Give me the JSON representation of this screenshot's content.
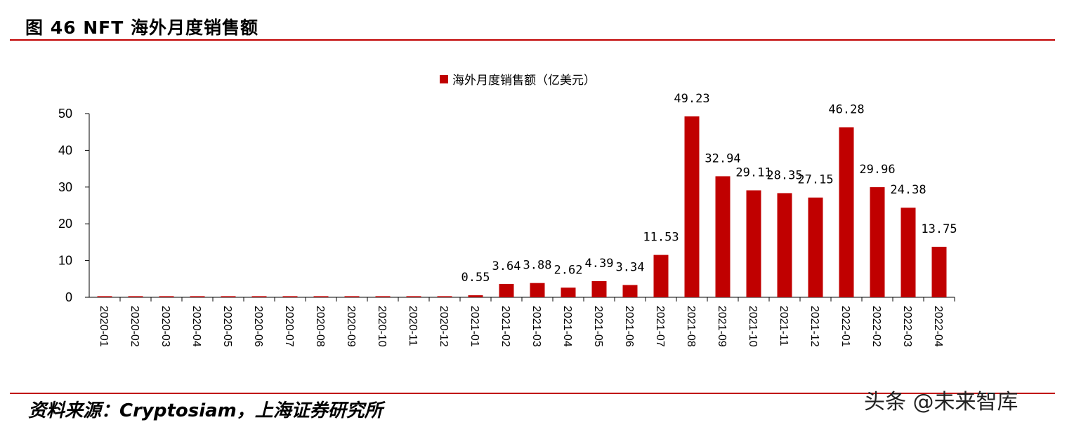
{
  "figure": {
    "title": "图 46 NFT 海外月度销售额",
    "source": "资料来源：Cryptosiam，上海证券研究所",
    "watermark": "头条 @未来智库"
  },
  "colors": {
    "bar": "#c00000",
    "accent_rule": "#c00000"
  },
  "chart_data": {
    "type": "bar",
    "categories": [
      "2020-01",
      "2020-02",
      "2020-03",
      "2020-04",
      "2020-05",
      "2020-06",
      "2020-07",
      "2020-08",
      "2020-09",
      "2020-10",
      "2020-11",
      "2020-12",
      "2021-01",
      "2021-02",
      "2021-03",
      "2021-04",
      "2021-05",
      "2021-06",
      "2021-07",
      "2021-08",
      "2021-09",
      "2021-10",
      "2021-11",
      "2021-12",
      "2022-01",
      "2022-02",
      "2022-03",
      "2022-04"
    ],
    "series": [
      {
        "name": "海外月度销售额（亿美元）",
        "values": [
          0.3,
          0.3,
          0.3,
          0.3,
          0.3,
          0.3,
          0.3,
          0.3,
          0.3,
          0.3,
          0.3,
          0.3,
          0.55,
          3.64,
          3.88,
          2.62,
          4.39,
          3.34,
          11.53,
          49.23,
          32.94,
          29.11,
          28.35,
          27.15,
          46.28,
          29.96,
          24.38,
          13.75
        ],
        "labels": [
          "",
          "",
          "",
          "",
          "",
          "",
          "",
          "",
          "",
          "",
          "",
          "",
          "0.55",
          "3.64",
          "3.88",
          "2.62",
          "4.39",
          "3.34",
          "11.53",
          "49.23",
          "32.94",
          "29.11",
          "28.35",
          "27.15",
          "46.28",
          "29.96",
          "24.38",
          "13.75"
        ]
      }
    ],
    "yticks": [
      "0",
      "10",
      "20",
      "30",
      "40",
      "50"
    ],
    "ylim": [
      0,
      50
    ],
    "legend_position": "top-center",
    "grid": false
  }
}
